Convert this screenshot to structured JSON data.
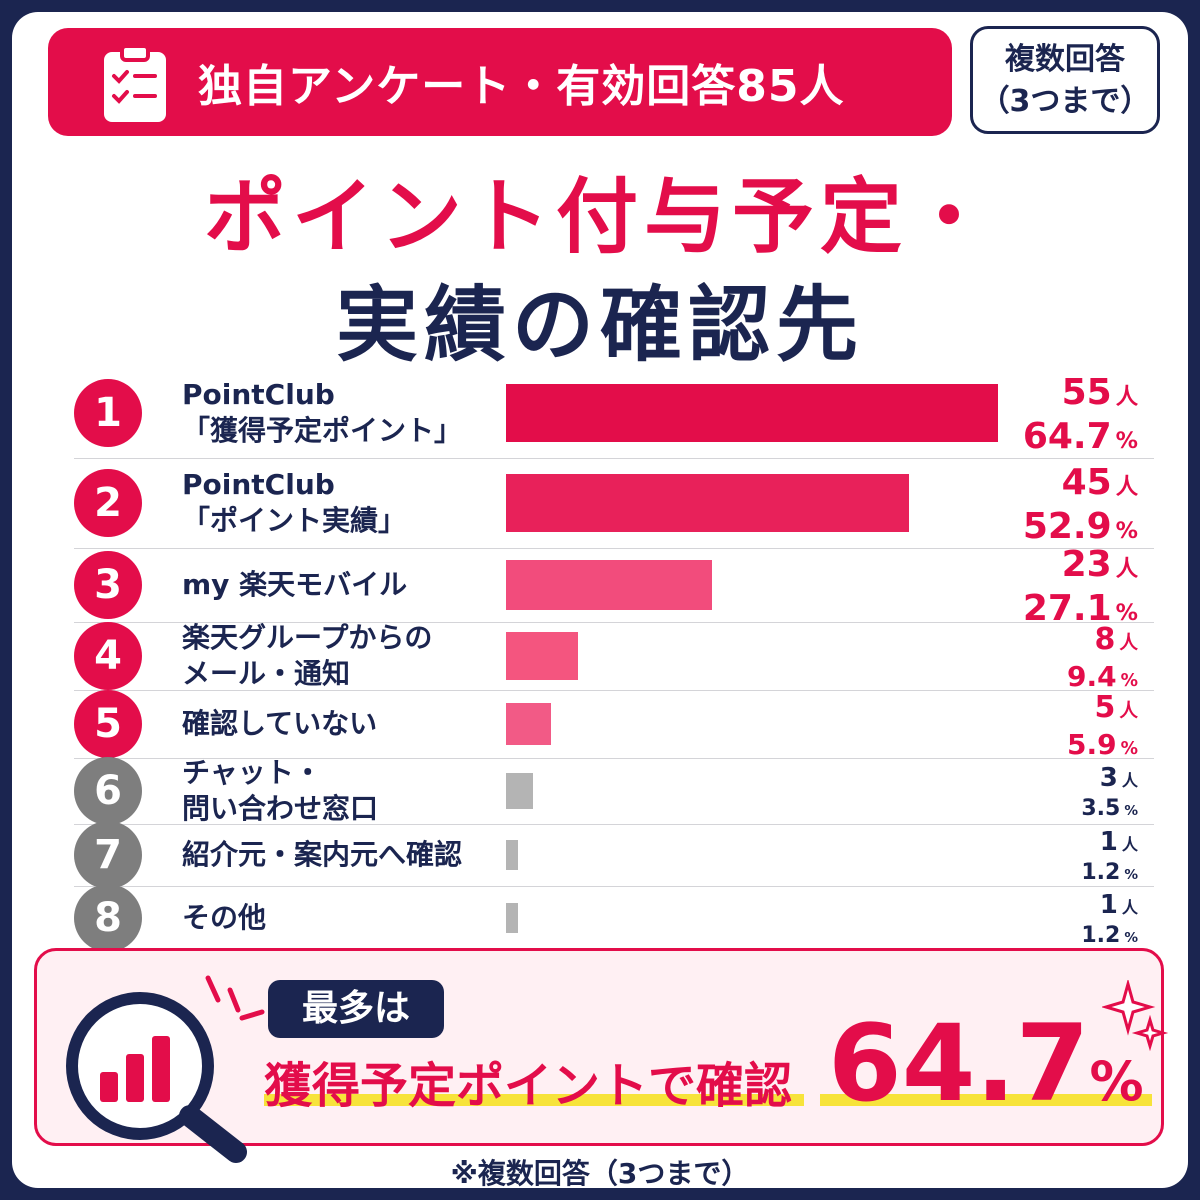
{
  "header": {
    "survey_label": "独自アンケート・有効回答85人",
    "multi_line1": "複数回答",
    "multi_line2": "（3つまで）",
    "title_line1": "ポイント付与予定・",
    "title_line2": "実績の確認先"
  },
  "chart_data": {
    "type": "bar",
    "orientation": "horizontal",
    "total_respondents": 85,
    "unit": "人",
    "categories": [
      {
        "rank": "1",
        "label_lines": [
          "PointClub",
          "「獲得予定ポイント」"
        ],
        "count": 55,
        "percent": "64.7"
      },
      {
        "rank": "2",
        "label_lines": [
          "PointClub",
          "「ポイント実績」"
        ],
        "count": 45,
        "percent": "52.9"
      },
      {
        "rank": "3",
        "label_lines": [
          "my 楽天モバイル"
        ],
        "count": 23,
        "percent": "27.1"
      },
      {
        "rank": "4",
        "label_lines": [
          "楽天グループからの",
          "メール・通知"
        ],
        "count": 8,
        "percent": "9.4"
      },
      {
        "rank": "5",
        "label_lines": [
          "確認していない"
        ],
        "count": 5,
        "percent": "5.9"
      },
      {
        "rank": "6",
        "label_lines": [
          "チャット・",
          "問い合わせ窓口"
        ],
        "count": 3,
        "percent": "3.5"
      },
      {
        "rank": "7",
        "label_lines": [
          "紹介元・案内元へ確認"
        ],
        "count": 1,
        "percent": "1.2"
      },
      {
        "rank": "8",
        "label_lines": [
          "その他"
        ],
        "count": 1,
        "percent": "1.2"
      }
    ]
  },
  "summary": {
    "badge": "最多は",
    "text": "獲得予定ポイントで確認",
    "value": "64.7",
    "value_unit": "%"
  },
  "footnote": "※複数回答（3つまで）",
  "colors": {
    "navy": "#1b2550",
    "accent_red": "#e30d4a",
    "bar_shades": [
      "#e30d4a",
      "#e8215a",
      "#f24c7c",
      "#f4557f",
      "#f25a86",
      "#b4b4b4",
      "#b4b4b4",
      "#b4b4b4"
    ],
    "rank_circle_colors": [
      "#e30d4a",
      "#e30d4a",
      "#e30d4a",
      "#e30d4a",
      "#e30d4a",
      "#7e7e7e",
      "#7e7e7e",
      "#7e7e7e"
    ],
    "highlight_yellow": "#f7e33a"
  }
}
